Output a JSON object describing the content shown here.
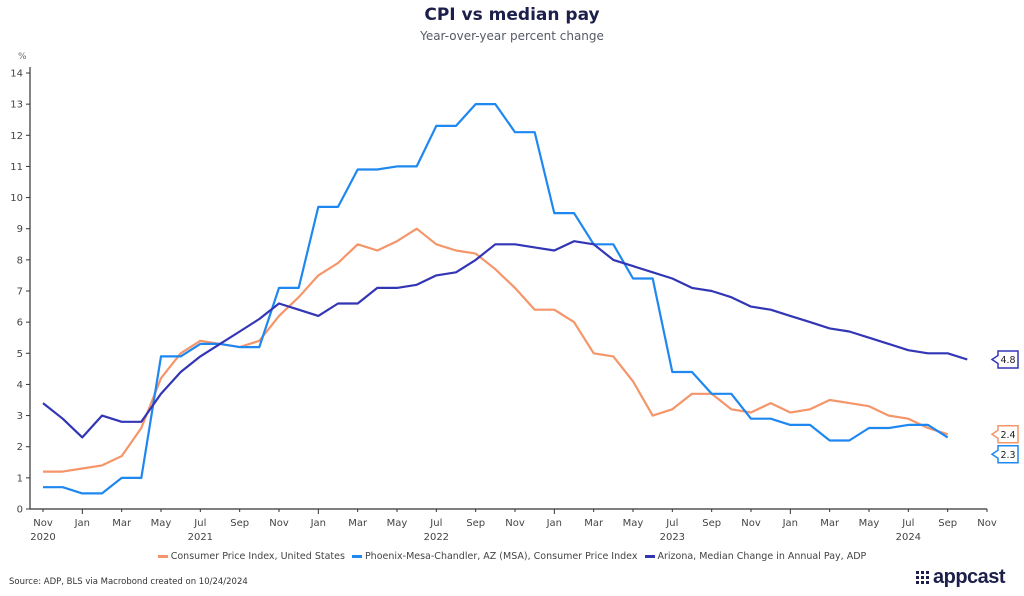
{
  "header": {
    "title": "CPI vs median pay",
    "subtitle": "Year-over-year percent change"
  },
  "chart_data": {
    "type": "line",
    "title": "CPI vs median pay",
    "subtitle": "Year-over-year percent change",
    "ylabel": "%",
    "xlabel": "",
    "ylim": [
      0,
      14
    ],
    "yticks": [
      0,
      1,
      2,
      3,
      4,
      5,
      6,
      7,
      8,
      9,
      10,
      11,
      12,
      13,
      14
    ],
    "grid": false,
    "x_start": "2020-11",
    "xticks": [
      {
        "month": 0,
        "label": "Nov",
        "year": "2020"
      },
      {
        "month": 2,
        "label": "Jan",
        "year": ""
      },
      {
        "month": 4,
        "label": "Mar",
        "year": ""
      },
      {
        "month": 6,
        "label": "May",
        "year": ""
      },
      {
        "month": 8,
        "label": "Jul",
        "year": "2021"
      },
      {
        "month": 10,
        "label": "Sep",
        "year": ""
      },
      {
        "month": 12,
        "label": "Nov",
        "year": ""
      },
      {
        "month": 14,
        "label": "Jan",
        "year": ""
      },
      {
        "month": 16,
        "label": "Mar",
        "year": ""
      },
      {
        "month": 18,
        "label": "May",
        "year": ""
      },
      {
        "month": 20,
        "label": "Jul",
        "year": "2022"
      },
      {
        "month": 22,
        "label": "Sep",
        "year": ""
      },
      {
        "month": 24,
        "label": "Nov",
        "year": ""
      },
      {
        "month": 26,
        "label": "Jan",
        "year": ""
      },
      {
        "month": 28,
        "label": "Mar",
        "year": ""
      },
      {
        "month": 30,
        "label": "May",
        "year": ""
      },
      {
        "month": 32,
        "label": "Jul",
        "year": "2023"
      },
      {
        "month": 34,
        "label": "Sep",
        "year": ""
      },
      {
        "month": 36,
        "label": "Nov",
        "year": ""
      },
      {
        "month": 38,
        "label": "Jan",
        "year": ""
      },
      {
        "month": 40,
        "label": "Mar",
        "year": ""
      },
      {
        "month": 42,
        "label": "May",
        "year": ""
      },
      {
        "month": 44,
        "label": "Jul",
        "year": "2024"
      },
      {
        "month": 46,
        "label": "Sep",
        "year": ""
      },
      {
        "month": 48,
        "label": "Nov",
        "year": ""
      }
    ],
    "xlim_months": [
      -0.5,
      48
    ],
    "legend_position": "bottom",
    "series": [
      {
        "name": "Consumer Price Index, United States",
        "color": "#f4956a",
        "end_label": "2.4",
        "values": [
          1.2,
          1.2,
          1.3,
          1.4,
          1.7,
          2.6,
          4.2,
          5.0,
          5.4,
          5.3,
          5.2,
          5.4,
          6.2,
          6.8,
          7.5,
          7.9,
          8.5,
          8.3,
          8.6,
          9.0,
          8.5,
          8.3,
          8.2,
          7.7,
          7.1,
          6.4,
          6.4,
          6.0,
          5.0,
          4.9,
          4.1,
          3.0,
          3.2,
          3.7,
          3.7,
          3.2,
          3.1,
          3.4,
          3.1,
          3.2,
          3.5,
          3.4,
          3.3,
          3.0,
          2.9,
          2.6,
          2.4
        ]
      },
      {
        "name": "Phoenix-Mesa-Chandler, AZ (MSA), Consumer Price Index",
        "color": "#1e88f0",
        "end_label": "2.3",
        "values": [
          0.7,
          0.7,
          0.5,
          0.5,
          1.0,
          1.0,
          4.9,
          4.9,
          5.3,
          5.3,
          5.2,
          5.2,
          7.1,
          7.1,
          9.7,
          9.7,
          10.9,
          10.9,
          11.0,
          11.0,
          12.3,
          12.3,
          13.0,
          13.0,
          12.1,
          12.1,
          9.5,
          9.5,
          8.5,
          8.5,
          7.4,
          7.4,
          4.4,
          4.4,
          3.7,
          3.7,
          2.9,
          2.9,
          2.7,
          2.7,
          2.2,
          2.2,
          2.6,
          2.6,
          2.7,
          2.7,
          2.3
        ]
      },
      {
        "name": "Arizona, Median Change in Annual Pay, ADP",
        "color": "#3236b5",
        "end_label": "4.8",
        "values": [
          3.4,
          2.9,
          2.3,
          3.0,
          2.8,
          2.8,
          3.7,
          4.4,
          4.9,
          5.3,
          5.7,
          6.1,
          6.6,
          6.4,
          6.2,
          6.6,
          6.6,
          7.1,
          7.1,
          7.2,
          7.5,
          7.6,
          8.0,
          8.5,
          8.5,
          8.4,
          8.3,
          8.6,
          8.5,
          8.0,
          7.8,
          7.6,
          7.4,
          7.1,
          7.0,
          6.8,
          6.5,
          6.4,
          6.2,
          6.0,
          5.8,
          5.7,
          5.5,
          5.3,
          5.1,
          5.0,
          5.0,
          4.8
        ]
      }
    ],
    "series_start_month": [
      0,
      0,
      0
    ]
  },
  "footer": {
    "source": "Source: ADP, BLS via Macrobond created on 10/24/2024",
    "logo_text": "appcast"
  }
}
